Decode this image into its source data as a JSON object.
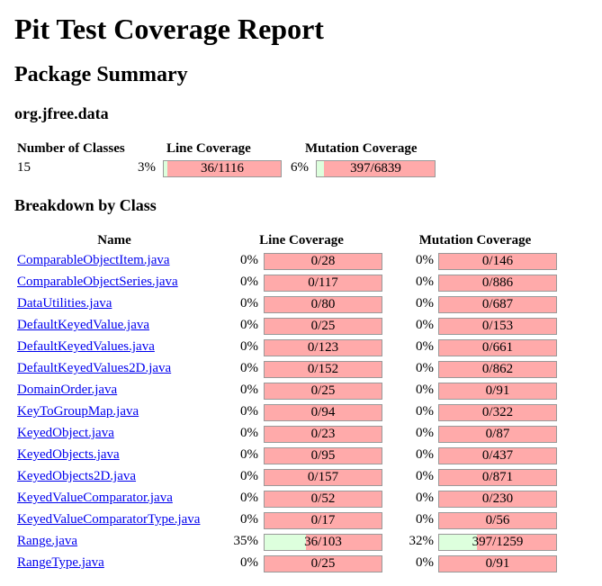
{
  "report": {
    "title": "Pit Test Coverage Report",
    "package_heading": "Package Summary",
    "package_name": "org.jfree.data",
    "breakdown_heading": "Breakdown by Class"
  },
  "summary": {
    "headers": {
      "classes": "Number of Classes",
      "line": "Line Coverage",
      "mutation": "Mutation Coverage"
    },
    "classes": "15",
    "line": {
      "percent": "3%",
      "ratio": "36/1116",
      "covered_fraction": 0.032
    },
    "mutation": {
      "percent": "6%",
      "ratio": "397/6839",
      "covered_fraction": 0.058
    }
  },
  "breakdown": {
    "headers": {
      "name": "Name",
      "line": "Line Coverage",
      "mutation": "Mutation Coverage"
    },
    "rows": [
      {
        "name": "ComparableObjectItem.java",
        "line_pct": "0%",
        "line_ratio": "0/28",
        "line_frac": 0,
        "mut_pct": "0%",
        "mut_ratio": "0/146",
        "mut_frac": 0
      },
      {
        "name": "ComparableObjectSeries.java",
        "line_pct": "0%",
        "line_ratio": "0/117",
        "line_frac": 0,
        "mut_pct": "0%",
        "mut_ratio": "0/886",
        "mut_frac": 0
      },
      {
        "name": "DataUtilities.java",
        "line_pct": "0%",
        "line_ratio": "0/80",
        "line_frac": 0,
        "mut_pct": "0%",
        "mut_ratio": "0/687",
        "mut_frac": 0
      },
      {
        "name": "DefaultKeyedValue.java",
        "line_pct": "0%",
        "line_ratio": "0/25",
        "line_frac": 0,
        "mut_pct": "0%",
        "mut_ratio": "0/153",
        "mut_frac": 0
      },
      {
        "name": "DefaultKeyedValues.java",
        "line_pct": "0%",
        "line_ratio": "0/123",
        "line_frac": 0,
        "mut_pct": "0%",
        "mut_ratio": "0/661",
        "mut_frac": 0
      },
      {
        "name": "DefaultKeyedValues2D.java",
        "line_pct": "0%",
        "line_ratio": "0/152",
        "line_frac": 0,
        "mut_pct": "0%",
        "mut_ratio": "0/862",
        "mut_frac": 0
      },
      {
        "name": "DomainOrder.java",
        "line_pct": "0%",
        "line_ratio": "0/25",
        "line_frac": 0,
        "mut_pct": "0%",
        "mut_ratio": "0/91",
        "mut_frac": 0
      },
      {
        "name": "KeyToGroupMap.java",
        "line_pct": "0%",
        "line_ratio": "0/94",
        "line_frac": 0,
        "mut_pct": "0%",
        "mut_ratio": "0/322",
        "mut_frac": 0
      },
      {
        "name": "KeyedObject.java",
        "line_pct": "0%",
        "line_ratio": "0/23",
        "line_frac": 0,
        "mut_pct": "0%",
        "mut_ratio": "0/87",
        "mut_frac": 0
      },
      {
        "name": "KeyedObjects.java",
        "line_pct": "0%",
        "line_ratio": "0/95",
        "line_frac": 0,
        "mut_pct": "0%",
        "mut_ratio": "0/437",
        "mut_frac": 0
      },
      {
        "name": "KeyedObjects2D.java",
        "line_pct": "0%",
        "line_ratio": "0/157",
        "line_frac": 0,
        "mut_pct": "0%",
        "mut_ratio": "0/871",
        "mut_frac": 0
      },
      {
        "name": "KeyedValueComparator.java",
        "line_pct": "0%",
        "line_ratio": "0/52",
        "line_frac": 0,
        "mut_pct": "0%",
        "mut_ratio": "0/230",
        "mut_frac": 0
      },
      {
        "name": "KeyedValueComparatorType.java",
        "line_pct": "0%",
        "line_ratio": "0/17",
        "line_frac": 0,
        "mut_pct": "0%",
        "mut_ratio": "0/56",
        "mut_frac": 0
      },
      {
        "name": "Range.java",
        "line_pct": "35%",
        "line_ratio": "36/103",
        "line_frac": 0.35,
        "mut_pct": "32%",
        "mut_ratio": "397/1259",
        "mut_frac": 0.32
      },
      {
        "name": "RangeType.java",
        "line_pct": "0%",
        "line_ratio": "0/25",
        "line_frac": 0,
        "mut_pct": "0%",
        "mut_ratio": "0/91",
        "mut_frac": 0
      }
    ]
  },
  "colors": {
    "covered": "#ddffdd",
    "uncovered": "#ffaaaa",
    "link": "#0000ee",
    "bar_border": "#999999"
  }
}
